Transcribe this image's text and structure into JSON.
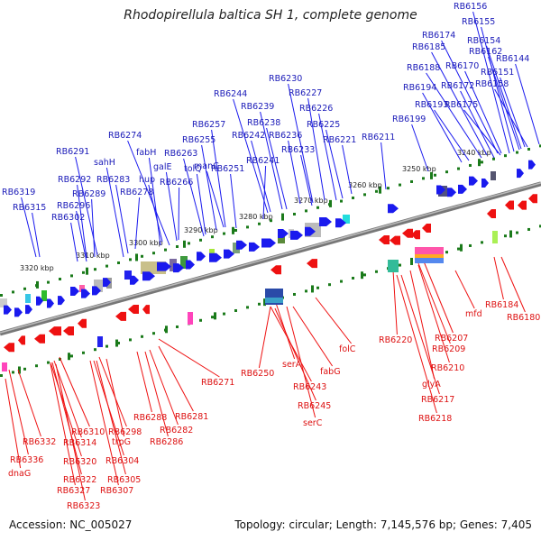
{
  "title": "Rhodopirellula baltica SH 1, complete genome",
  "footer": {
    "accession_label": "Accession: NC_005027",
    "topology_label": "Topology: circular; Length: 7,145,576 bp; Genes: 7,405"
  },
  "colors": {
    "forward_gene": "#1a1aee",
    "reverse_gene": "#ee1111",
    "forward_label": "#1a1ab8",
    "reverse_label": "#dd1111",
    "tick": "#1a7a1a",
    "backbone": "#888888"
  },
  "scale_labels": [
    "3320 kbp",
    "3310 kbp",
    "3300 kbp",
    "3290 kbp",
    "3280 kbp",
    "3270 kbp",
    "3260 kbp",
    "3250 kbp",
    "3240 kbp"
  ],
  "forward_labels": [
    "RB6156",
    "RB6155",
    "RB6174",
    "RB6154",
    "RB6185",
    "RB6162",
    "RB6144",
    "RB6188",
    "RB6170",
    "RB6151",
    "RB6172",
    "RB6158",
    "RB6194",
    "RB6193",
    "RB6175",
    "RB6199",
    "RB6230",
    "RB6227",
    "RB6244",
    "RB6239",
    "RB6226",
    "RB6238",
    "RB6257",
    "RB6225",
    "RB6242",
    "RB6236",
    "RB6274",
    "RB6255",
    "RB6221",
    "RB6211",
    "RB6263",
    "RB6233",
    "fabH",
    "manC",
    "RB6241",
    "RB6291",
    "sahH",
    "galE",
    "tolQ",
    "RB6251",
    "RB6292",
    "RB6283",
    "hup",
    "RB6266",
    "RB6296",
    "RB6289",
    "RB6278",
    "RB6319",
    "RB6315",
    "RB6302"
  ],
  "reverse_labels": [
    "RB6184",
    "mfd",
    "RB6180",
    "RB6220",
    "RB6207",
    "RB6209",
    "folC",
    "RB6210",
    "RB6250",
    "serA",
    "RB6271",
    "fabG",
    "glyA",
    "RB6243",
    "RB6217",
    "RB6245",
    "RB6218",
    "serC",
    "RB6288",
    "RB6281",
    "RB6282",
    "RB6310",
    "RB6298",
    "RB6332",
    "RB6314",
    "RB6286",
    "trpG",
    "RB6336",
    "RB6320",
    "RB6304",
    "dnaG",
    "RB6322",
    "RB6305",
    "RB6327",
    "RB6307",
    "RB6323"
  ]
}
